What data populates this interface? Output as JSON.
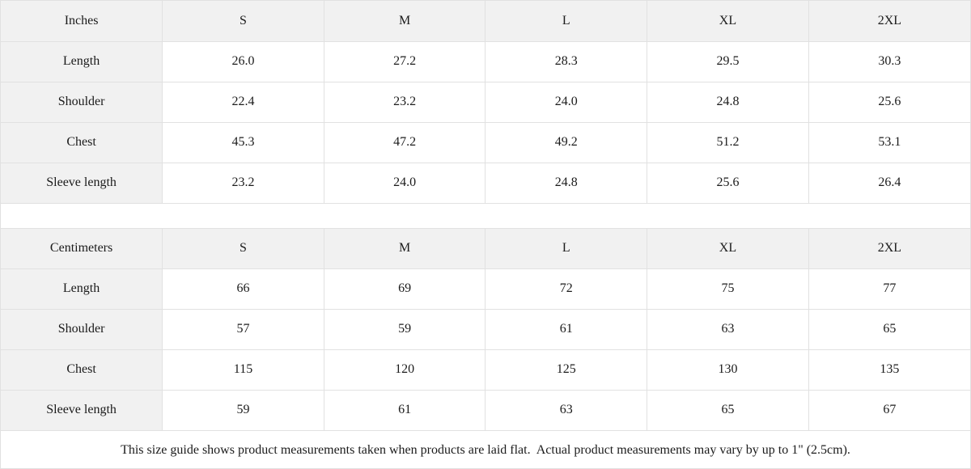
{
  "chart_data": [
    {
      "type": "table",
      "title": "Inches",
      "columns": [
        "Inches",
        "S",
        "M",
        "L",
        "XL",
        "2XL"
      ],
      "rows": [
        [
          "Length",
          "26.0",
          "27.2",
          "28.3",
          "29.5",
          "30.3"
        ],
        [
          "Shoulder",
          "22.4",
          "23.2",
          "24.0",
          "24.8",
          "25.6"
        ],
        [
          "Chest",
          "45.3",
          "47.2",
          "49.2",
          "51.2",
          "53.1"
        ],
        [
          "Sleeve length",
          "23.2",
          "24.0",
          "24.8",
          "25.6",
          "26.4"
        ]
      ]
    },
    {
      "type": "table",
      "title": "Centimeters",
      "columns": [
        "Centimeters",
        "S",
        "M",
        "L",
        "XL",
        "2XL"
      ],
      "rows": [
        [
          "Length",
          "66",
          "69",
          "72",
          "75",
          "77"
        ],
        [
          "Shoulder",
          "57",
          "59",
          "61",
          "63",
          "65"
        ],
        [
          "Chest",
          "115",
          "120",
          "125",
          "130",
          "135"
        ],
        [
          "Sleeve length",
          "59",
          "61",
          "63",
          "65",
          "67"
        ]
      ]
    }
  ],
  "footer": {
    "note": "This size guide shows product measurements taken when products are laid flat.  Actual product measurements may vary by up to 1\" (2.5cm)."
  },
  "colors": {
    "header_bg": "#f1f1f1",
    "border": "#e1e1e1",
    "text": "#1b1b1b"
  }
}
